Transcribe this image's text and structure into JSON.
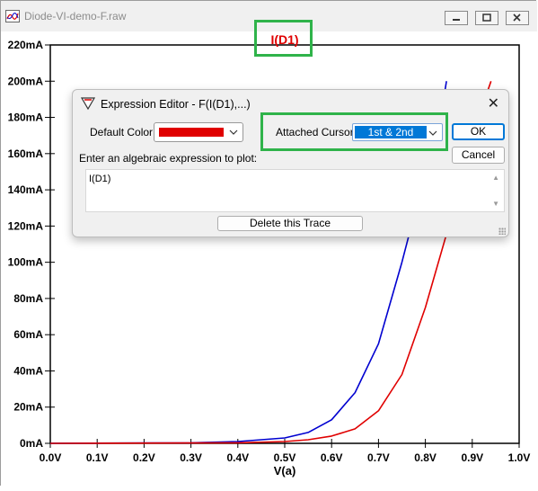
{
  "window": {
    "title": "Diode-VI-demo-F.raw"
  },
  "plot": {
    "trace_label": "I(D1)",
    "x_axis_label": "V(a)",
    "x_ticks": [
      "0.0V",
      "0.1V",
      "0.2V",
      "0.3V",
      "0.4V",
      "0.5V",
      "0.6V",
      "0.7V",
      "0.8V",
      "0.9V",
      "1.0V"
    ],
    "y_ticks": [
      "0mA",
      "20mA",
      "40mA",
      "60mA",
      "80mA",
      "100mA",
      "120mA",
      "140mA",
      "160mA",
      "180mA",
      "200mA",
      "220mA"
    ],
    "colors": {
      "trace_red": "#e00000",
      "trace_blue": "#0000d0",
      "title_red": "#e00000"
    }
  },
  "chart_data": {
    "type": "line",
    "title": "I(D1)",
    "xlabel": "V(a)",
    "ylabel": "",
    "xlim": [
      0.0,
      1.0
    ],
    "ylim": [
      0,
      220
    ],
    "grid": false,
    "series": [
      {
        "color": "#0000d0",
        "x": [
          0.0,
          0.3,
          0.4,
          0.45,
          0.5,
          0.55,
          0.6,
          0.65,
          0.7,
          0.75,
          0.78,
          0.8,
          0.82,
          0.84,
          0.845
        ],
        "y": [
          0,
          0.3,
          1,
          2,
          3,
          6,
          13,
          28,
          55,
          100,
          130,
          150,
          172,
          192,
          200
        ]
      },
      {
        "color": "#e00000",
        "x": [
          0.0,
          0.4,
          0.5,
          0.55,
          0.6,
          0.65,
          0.7,
          0.75,
          0.8,
          0.85,
          0.88,
          0.9,
          0.92,
          0.94
        ],
        "y": [
          0,
          0.3,
          1,
          2,
          4,
          8,
          18,
          38,
          75,
          120,
          150,
          168,
          185,
          200
        ]
      }
    ]
  },
  "dialog": {
    "title": "Expression Editor - F(I(D1),...)",
    "default_color_label": "Default Color:",
    "attached_cursor_label": "Attached Cursor:",
    "attached_cursor_value": "1st & 2nd",
    "ok_label": "OK",
    "cancel_label": "Cancel",
    "prompt": "Enter an algebraic expression to plot:",
    "expression": "I(D1)",
    "delete_label": "Delete this Trace",
    "close_glyph": "✕",
    "default_color": "#e00000"
  }
}
